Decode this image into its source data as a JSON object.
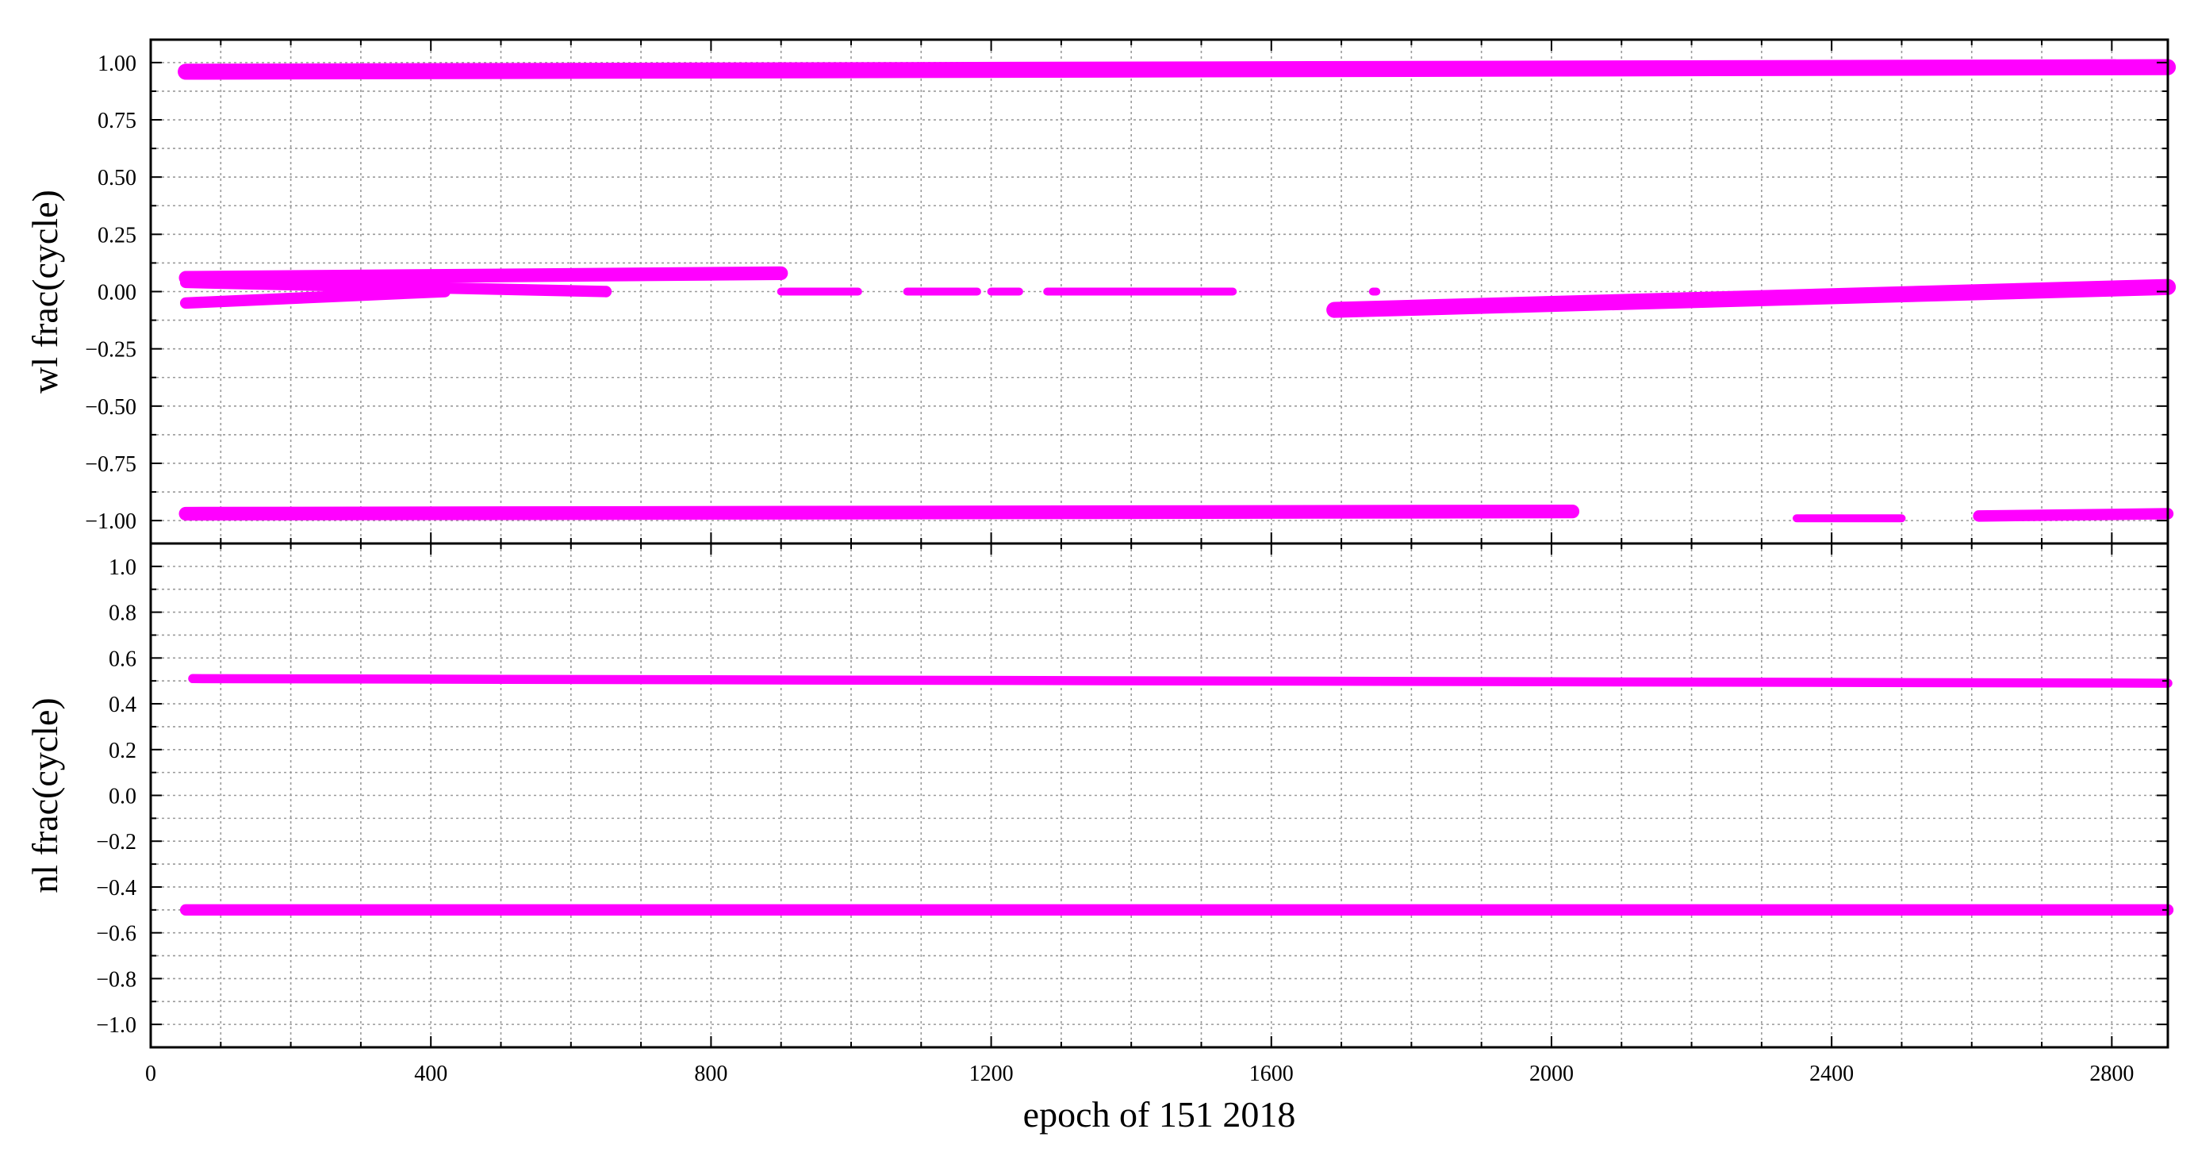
{
  "chart_data": {
    "type": "scatter",
    "shared_xaxis": {
      "label": "epoch of 151 2018",
      "xlim": [
        0,
        2880
      ],
      "ticks": [
        0,
        400,
        800,
        1200,
        1600,
        2000,
        2400,
        2800
      ],
      "minor_step": 100
    },
    "marker_color": "#FF00FF",
    "grid": true,
    "panels": [
      {
        "ylabel": "wl frac(cycle)",
        "ylim": [
          -1.1,
          1.1
        ],
        "yticks": [
          1.0,
          0.75,
          0.5,
          0.25,
          0.0,
          -0.25,
          -0.5,
          -0.75,
          -1.0
        ],
        "ytick_labels": [
          "1.00",
          "0.75",
          "0.50",
          "0.25",
          "0.00",
          "−0.25",
          "−0.50",
          "−0.75",
          "−1.00"
        ],
        "minor_step": 0.125,
        "bands": [
          {
            "x0": 50,
            "x1": 2880,
            "y_start": 0.96,
            "y_end": 0.98,
            "spread": 0.07
          },
          {
            "x0": 50,
            "x1": 900,
            "y_start": 0.06,
            "y_end": 0.08,
            "spread": 0.06
          },
          {
            "x0": 50,
            "x1": 650,
            "y_start": 0.04,
            "y_end": 0.0,
            "spread": 0.05
          },
          {
            "x0": 50,
            "x1": 420,
            "y_start": -0.05,
            "y_end": 0.0,
            "spread": 0.05
          },
          {
            "x0": 900,
            "x1": 1010,
            "y_start": 0.0,
            "y_end": 0.0,
            "spread": 0.02
          },
          {
            "x0": 1080,
            "x1": 1180,
            "y_start": 0.0,
            "y_end": 0.0,
            "spread": 0.02
          },
          {
            "x0": 1200,
            "x1": 1240,
            "y_start": 0.0,
            "y_end": 0.0,
            "spread": 0.02
          },
          {
            "x0": 1280,
            "x1": 1545,
            "y_start": 0.0,
            "y_end": 0.0,
            "spread": 0.02
          },
          {
            "x0": 1745,
            "x1": 1750,
            "y_start": 0.0,
            "y_end": 0.0,
            "spread": 0.02
          },
          {
            "x0": 1690,
            "x1": 2880,
            "y_start": -0.08,
            "y_end": 0.02,
            "spread": 0.07
          },
          {
            "x0": 50,
            "x1": 2030,
            "y_start": -0.97,
            "y_end": -0.96,
            "spread": 0.06
          },
          {
            "x0": 2350,
            "x1": 2500,
            "y_start": -0.99,
            "y_end": -0.99,
            "spread": 0.02
          },
          {
            "x0": 2610,
            "x1": 2880,
            "y_start": -0.98,
            "y_end": -0.97,
            "spread": 0.05
          }
        ]
      },
      {
        "ylabel": "nl frac(cycle)",
        "ylim": [
          -1.1,
          1.1
        ],
        "yticks": [
          1.0,
          0.8,
          0.6,
          0.4,
          0.2,
          0.0,
          -0.2,
          -0.4,
          -0.6,
          -0.8,
          -1.0
        ],
        "ytick_labels": [
          "1.0",
          "0.8",
          "0.6",
          "0.4",
          "0.2",
          "0.0",
          "−0.2",
          "−0.4",
          "−0.6",
          "−0.8",
          "−1.0"
        ],
        "minor_step": 0.1,
        "bands": [
          {
            "x0": 60,
            "x1": 2880,
            "y_start": 0.51,
            "y_end": 0.49,
            "spread": 0.04
          },
          {
            "x0": 50,
            "x1": 2880,
            "y_start": -0.5,
            "y_end": -0.5,
            "spread": 0.05
          }
        ]
      }
    ]
  }
}
